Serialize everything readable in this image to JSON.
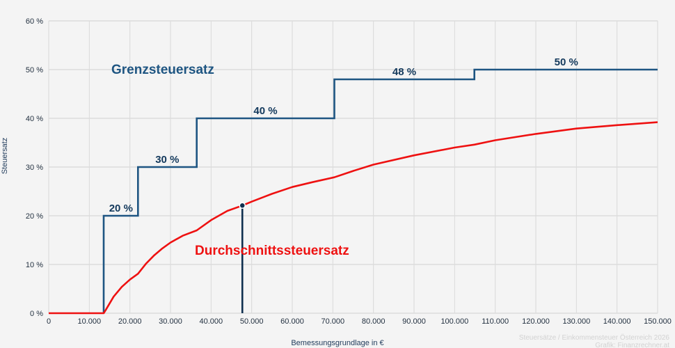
{
  "chart_data": {
    "type": "line",
    "title": "",
    "xlabel": "Bemessungsgrundlage in €",
    "ylabel": "Steuersatz",
    "xlim": [
      0,
      150000
    ],
    "ylim": [
      0,
      60
    ],
    "grid": true,
    "x_ticks": [
      "0",
      "10.000",
      "20.000",
      "30.000",
      "40.000",
      "50.000",
      "60.000",
      "70.000",
      "80.000",
      "90.000",
      "100.000",
      "110.000",
      "120.000",
      "130.000",
      "140.000",
      "150.000"
    ],
    "y_ticks": [
      "0 %",
      "10 %",
      "20 %",
      "30 %",
      "40 %",
      "50 %",
      "60 %"
    ],
    "series": [
      {
        "name": "Grenzsteuersatz",
        "color": "#1e5582",
        "style": "step",
        "x": [
          0,
          13539,
          13539,
          21992,
          21992,
          36458,
          36458,
          70365,
          70365,
          104859,
          104859,
          150000
        ],
        "values": [
          0,
          0,
          20,
          20,
          30,
          30,
          40,
          40,
          48,
          48,
          50,
          50
        ],
        "step_labels": [
          {
            "text": "20 %",
            "x": 17800,
            "y": 20
          },
          {
            "text": "30 %",
            "x": 29200,
            "y": 30
          },
          {
            "text": "40 %",
            "x": 53400,
            "y": 40
          },
          {
            "text": "48 %",
            "x": 87600,
            "y": 48
          },
          {
            "text": "50 %",
            "x": 127500,
            "y": 50
          }
        ]
      },
      {
        "name": "Durchschnittssteuersatz",
        "color": "#ee1111",
        "style": "line",
        "x": [
          0,
          13539,
          14000,
          16000,
          18000,
          20000,
          21992,
          24000,
          26000,
          28000,
          30000,
          33000,
          36458,
          40000,
          44000,
          47700,
          50000,
          55000,
          60000,
          65000,
          70365,
          75000,
          80000,
          90000,
          100000,
          104859,
          110000,
          120000,
          130000,
          140000,
          150000
        ],
        "values": [
          0,
          0,
          0.6,
          3.4,
          5.4,
          6.9,
          8.1,
          10.2,
          11.9,
          13.3,
          14.5,
          15.9,
          17.0,
          19.1,
          21.0,
          22.1,
          22.9,
          24.5,
          25.9,
          26.9,
          27.9,
          29.2,
          30.5,
          32.4,
          34.0,
          34.6,
          35.5,
          36.8,
          37.9,
          38.6,
          39.2
        ]
      }
    ],
    "annotations": [
      {
        "type": "marker",
        "x": 47700,
        "y": 22.1,
        "vertical_line": true,
        "color": "#0f2f4f"
      },
      {
        "type": "text",
        "text": "Grenzsteuersatz",
        "x": 16000,
        "y": 50,
        "color": "#1e5582"
      },
      {
        "type": "text",
        "text": "Durchschnittssteuersatz",
        "x": 36000,
        "y": 12,
        "color": "#ee1111"
      }
    ],
    "credits": [
      "Steuersätze / Einkommensteuer Österreich 2026",
      "Grafik: Finanzrechner.at"
    ]
  },
  "labels": {
    "xlabel": "Bemessungsgrundlage in €",
    "ylabel": "Steuersatz",
    "grenz": "Grenzsteuersatz",
    "durch": "Durchschnittssteuersatz",
    "credit1": "Steuersätze / Einkommensteuer Österreich 2026",
    "credit2": "Grafik: Finanzrechner.at"
  }
}
